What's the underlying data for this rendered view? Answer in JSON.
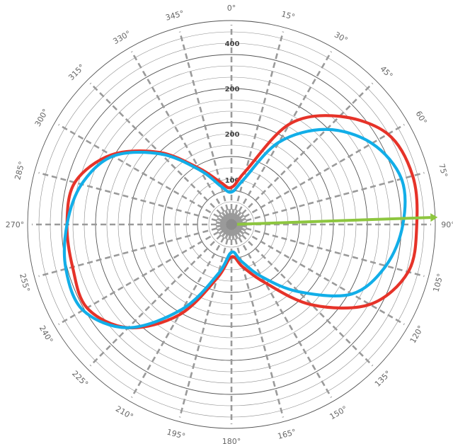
{
  "chart_data": {
    "type": "polar-line",
    "angle_labels": [
      "0°",
      "15°",
      "30°",
      "45°",
      "60°",
      "75°",
      "90°",
      "105°",
      "120°",
      "135°",
      "150°",
      "165°",
      "180°",
      "195°",
      "210°",
      "225°",
      "240°",
      "255°",
      "270°",
      "285°",
      "300°",
      "315°",
      "330°",
      "345°"
    ],
    "radial_tick_labels": [
      "400",
      "200",
      "200",
      "100"
    ],
    "rmax": 440,
    "ring_count": 18,
    "angles_deg": [
      0,
      15,
      30,
      45,
      60,
      75,
      90,
      105,
      120,
      135,
      150,
      165,
      180,
      195,
      210,
      225,
      240,
      255,
      270,
      285,
      300,
      315,
      330,
      345,
      360
    ],
    "series": [
      {
        "color": "#e63329",
        "values": [
          80,
          120,
          250,
          330,
          390,
          405,
          400,
          395,
          345,
          245,
          145,
          95,
          70,
          120,
          225,
          315,
          360,
          355,
          355,
          350,
          300,
          220,
          140,
          95,
          80
        ]
      },
      {
        "color": "#12aee8",
        "values": [
          70,
          100,
          205,
          290,
          350,
          380,
          370,
          345,
          300,
          205,
          130,
          82,
          60,
          110,
          210,
          315,
          370,
          370,
          355,
          335,
          295,
          215,
          135,
          85,
          70
        ]
      }
    ],
    "arrow": {
      "angle_deg": 88,
      "value": 430,
      "color": "#8dc63f"
    }
  }
}
